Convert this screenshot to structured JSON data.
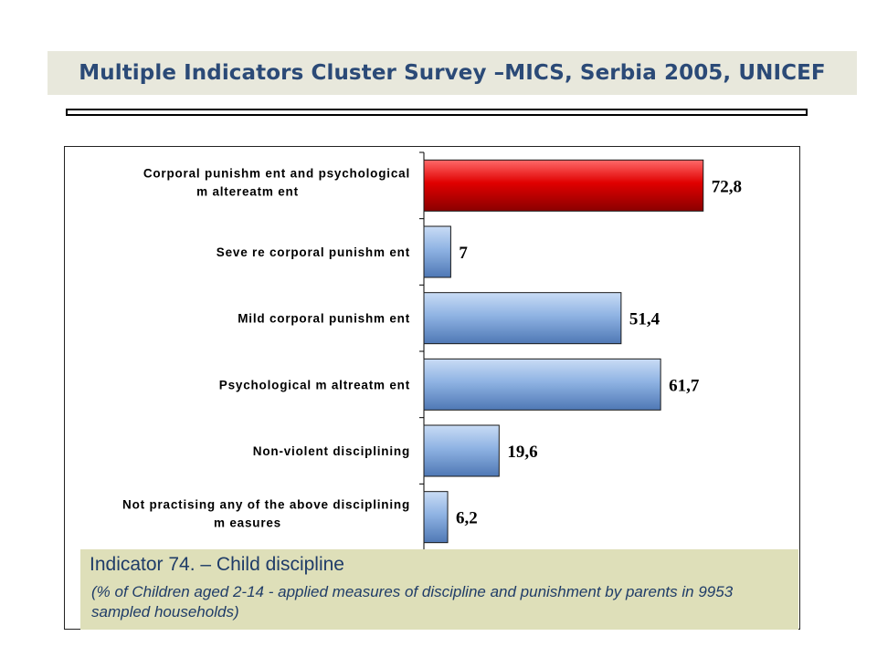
{
  "header": {
    "title": "Multiple Indicators Cluster Survey –MICS, Serbia 2005, UNICEF"
  },
  "indicator": {
    "title": "Indicator 74. – Child discipline",
    "description": " (% of Children aged 2-14 -  applied measures of discipline and punishment  by parents in 9953 sampled households)"
  },
  "chart_data": {
    "type": "bar",
    "orientation": "horizontal",
    "categories": [
      "Corporal punishm ent and psychological m altereatm ent",
      "Seve re corporal punishm ent",
      "Mild corporal punishm ent",
      "Psychological m altreatm ent",
      "Non-violent disciplining",
      "Not practising any of the above disciplining m easures"
    ],
    "category_lines": [
      [
        "Corporal punishm ent and psychological",
        "m altereatm ent"
      ],
      [
        "Seve re corporal punishm ent"
      ],
      [
        "Mild corporal punishm ent"
      ],
      [
        "Psychological m altreatm ent"
      ],
      [
        "Non-violent disciplining"
      ],
      [
        "Not practising any of the above disciplining",
        "m easures"
      ]
    ],
    "values": [
      72.8,
      7,
      51.4,
      61.7,
      19.6,
      6.2
    ],
    "value_labels": [
      "72,8",
      "7",
      "51,4",
      "61,7",
      "19,6",
      "6,2"
    ],
    "highlight_index": 0,
    "colors": {
      "highlight": "#c00000",
      "bar": "#7fa4d8"
    },
    "xlim": [
      0,
      100
    ],
    "grid": false,
    "legend": "none"
  }
}
